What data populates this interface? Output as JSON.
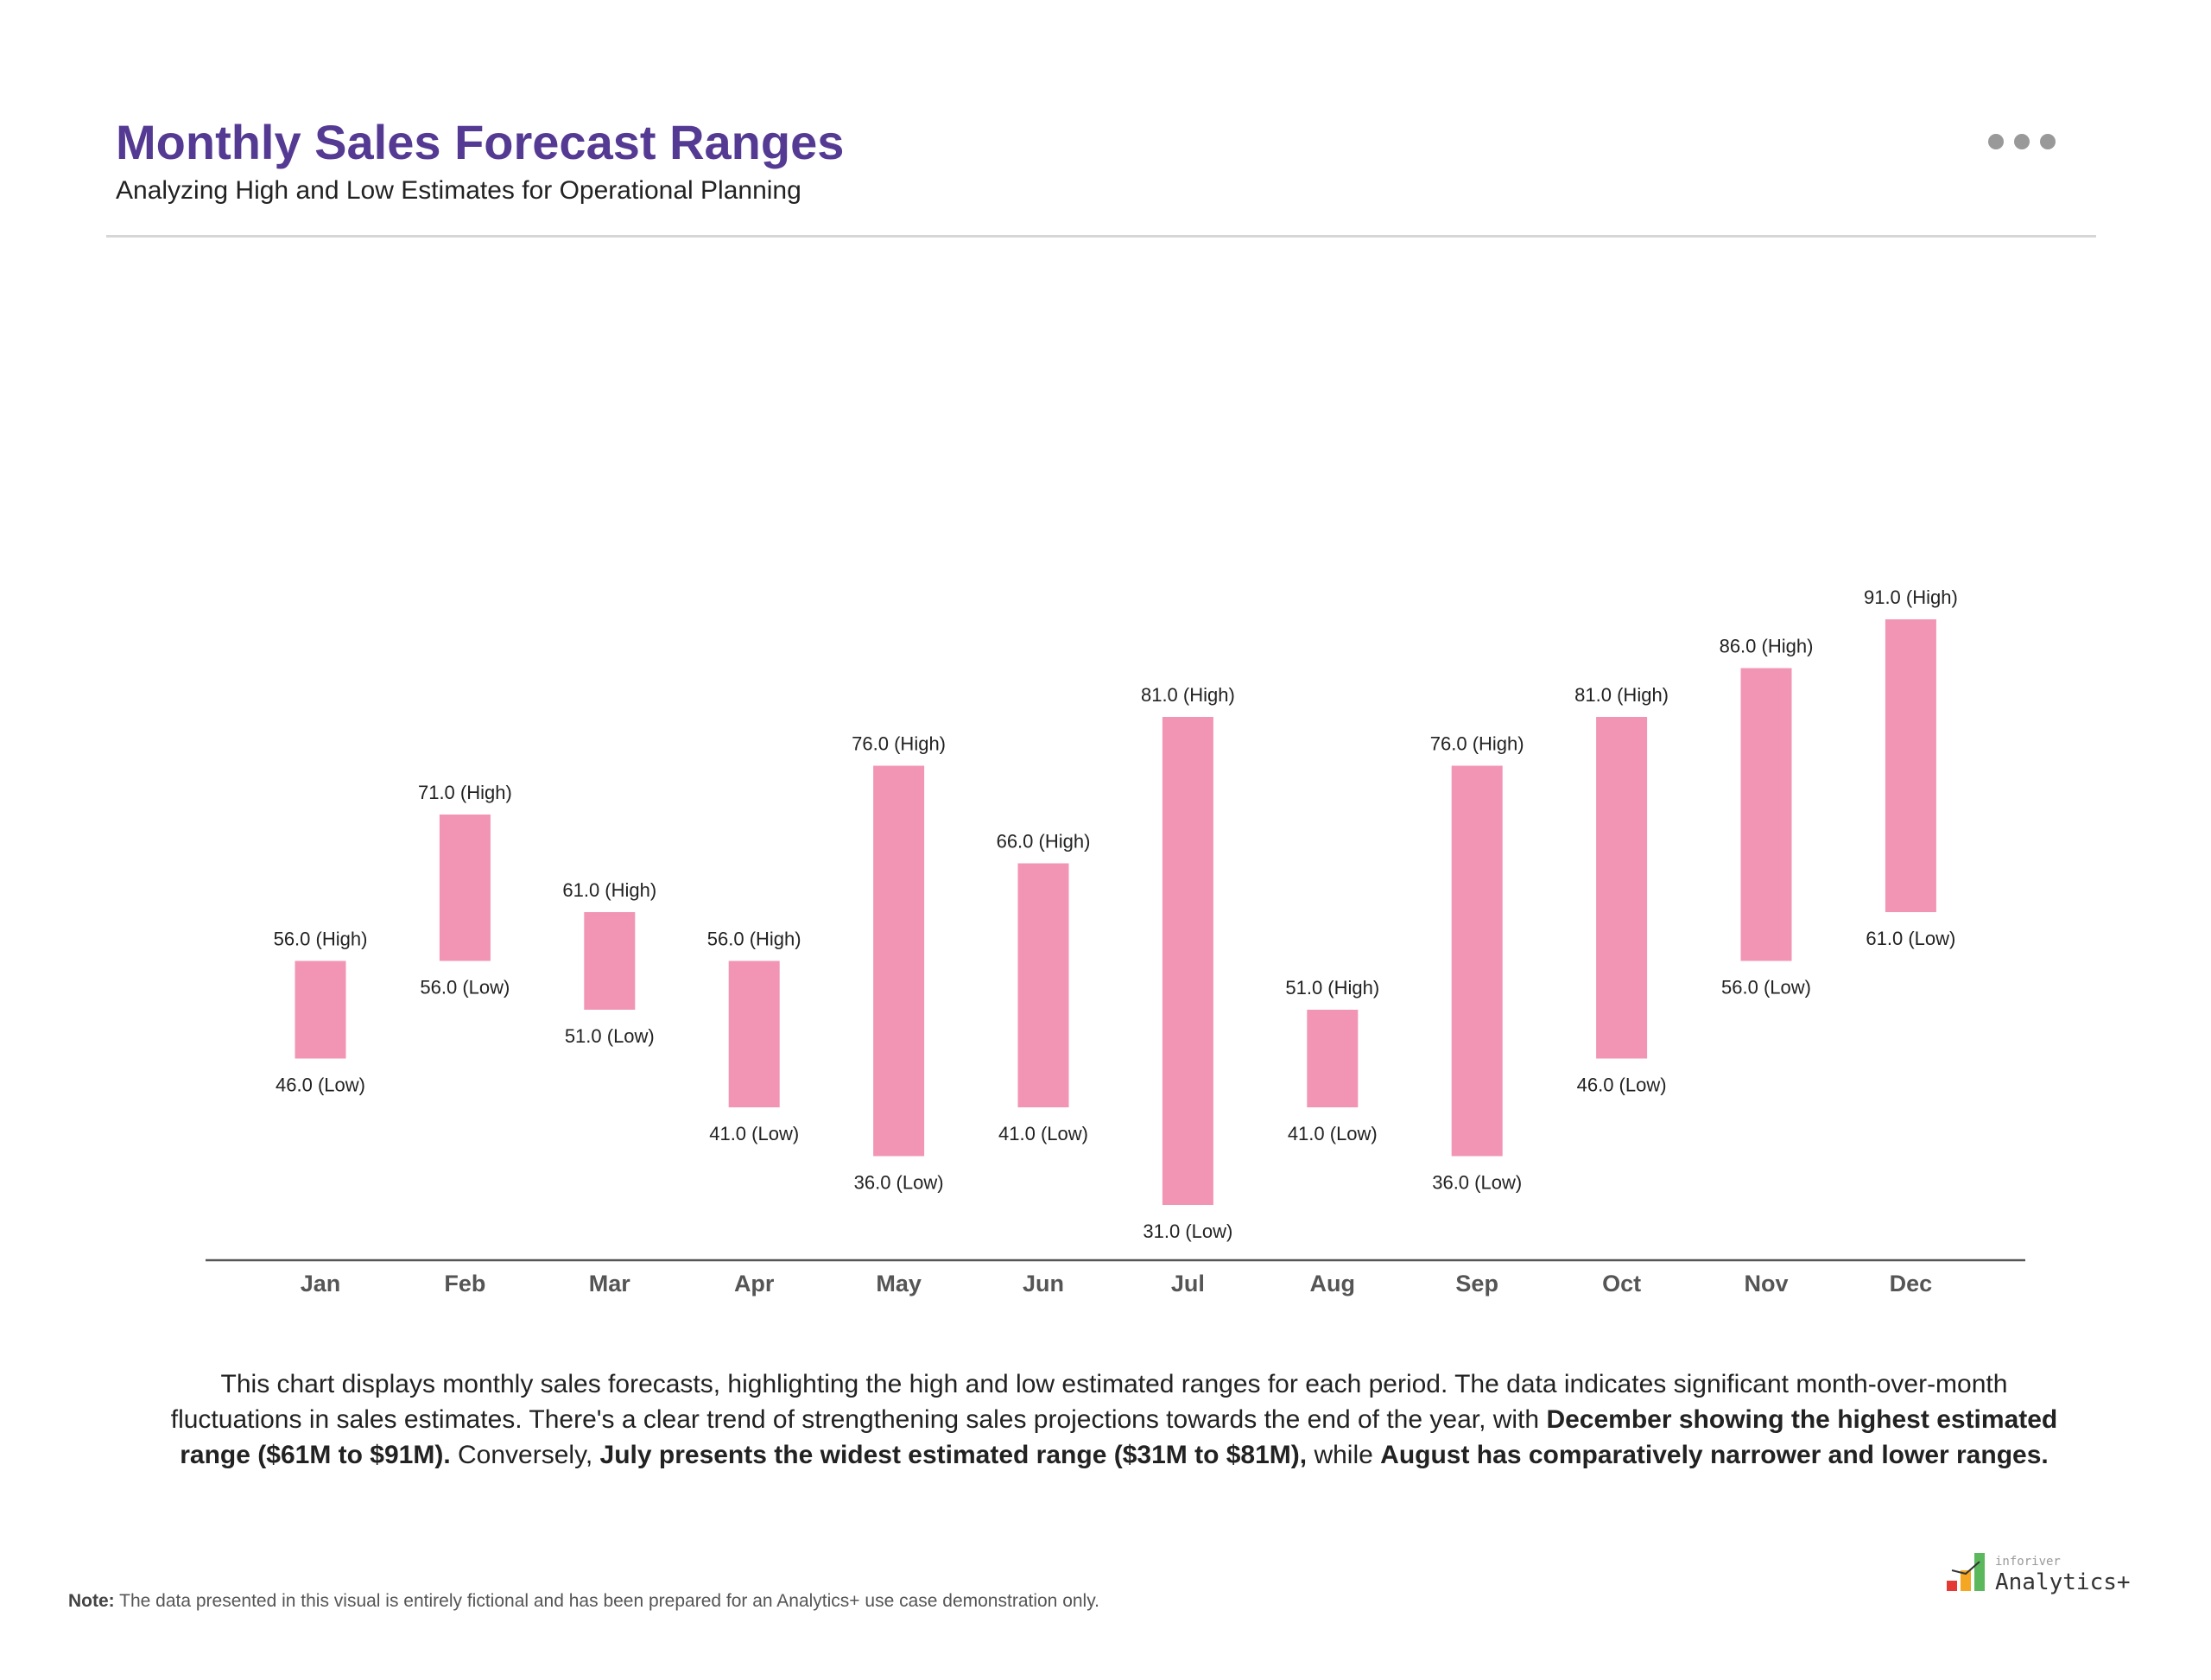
{
  "header": {
    "title": "Monthly Sales Forecast Ranges",
    "subtitle": "Analyzing High and Low Estimates for Operational Planning",
    "menu_icon": "more-horizontal-icon"
  },
  "chart_data": {
    "type": "bar",
    "subtype": "floating-range",
    "categories": [
      "Jan",
      "Feb",
      "Mar",
      "Apr",
      "May",
      "Jun",
      "Jul",
      "Aug",
      "Sep",
      "Oct",
      "Nov",
      "Dec"
    ],
    "series": [
      {
        "name": "High",
        "values": [
          56,
          71,
          61,
          56,
          76,
          66,
          81,
          51,
          76,
          81,
          86,
          91
        ]
      },
      {
        "name": "Low",
        "values": [
          46,
          56,
          51,
          41,
          36,
          41,
          31,
          41,
          36,
          46,
          56,
          61
        ]
      }
    ],
    "high_labels": [
      "56.0 (High)",
      "71.0 (High)",
      "61.0 (High)",
      "56.0 (High)",
      "76.0 (High)",
      "66.0 (High)",
      "81.0 (High)",
      "51.0 (High)",
      "76.0 (High)",
      "81.0 (High)",
      "86.0 (High)",
      "91.0 (High)"
    ],
    "low_labels": [
      "46.0 (Low)",
      "56.0 (Low)",
      "51.0 (Low)",
      "41.0 (Low)",
      "36.0 (Low)",
      "41.0 (Low)",
      "31.0 (Low)",
      "41.0 (Low)",
      "36.0 (Low)",
      "46.0 (Low)",
      "56.0 (Low)",
      "61.0 (Low)"
    ],
    "bar_color": "#f295b5",
    "grid": false,
    "y_axis_visible": false
  },
  "summary": {
    "p1": "This chart displays monthly sales forecasts, highlighting the high and low estimated ranges for each period. The data indicates significant month-over-month fluctuations in sales estimates. There's a clear trend of strengthening sales projections towards the end of the year, with ",
    "b1": "December showing the highest estimated range ($61M to $91M).",
    "p2": " Conversely, ",
    "b2": "July presents the widest estimated range ($31M to $81M),",
    "p3": " while ",
    "b3": "August has comparatively narrower and lower ranges."
  },
  "footer": {
    "note_label": "Note:",
    "note_text": " The data presented in this visual is entirely fictional and has been prepared for an Analytics+ use case demonstration only.",
    "logo_small": "inforiver",
    "logo_main": "Analytics+"
  },
  "colors": {
    "title": "#553a93",
    "bar": "#f295b5",
    "logo_red": "#e53935",
    "logo_orange": "#f5a623",
    "logo_green": "#5cb85c"
  }
}
